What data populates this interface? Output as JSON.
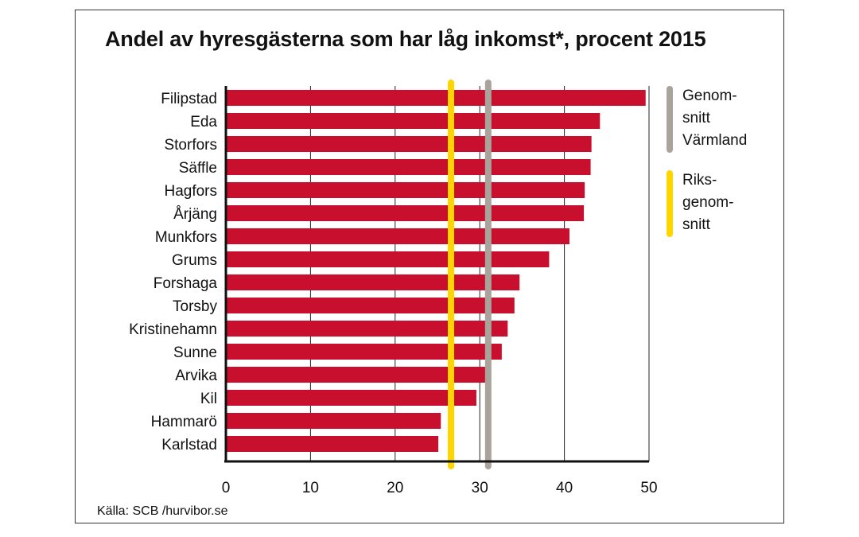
{
  "title": "Andel av hyresgästerna som har låg inkomst*, procent 2015",
  "source": "Källa: SCB /hurvibor.se",
  "legend": [
    {
      "lines": [
        "Genom-",
        "snitt",
        "Värmland"
      ],
      "color": "#aaa39c",
      "ref": "varmland"
    },
    {
      "lines": [
        "Riks-",
        "genom-",
        "snitt"
      ],
      "color": "#ffd500",
      "ref": "riks"
    }
  ],
  "chart_data": {
    "type": "bar",
    "orientation": "horizontal",
    "title": "Andel av hyresgästerna som har låg inkomst*, procent 2015",
    "categories": [
      "Filipstad",
      "Eda",
      "Storfors",
      "Säffle",
      "Hagfors",
      "Årjäng",
      "Munkfors",
      "Grums",
      "Forshaga",
      "Torsby",
      "Kristinehamn",
      "Sunne",
      "Arvika",
      "Kil",
      "Hammarö",
      "Karlstad"
    ],
    "values": [
      49.6,
      44.2,
      43.2,
      43.1,
      42.4,
      42.3,
      40.6,
      38.2,
      34.7,
      34.1,
      33.3,
      32.6,
      30.8,
      29.6,
      25.4,
      25.1
    ],
    "xlim": [
      0,
      50
    ],
    "xticks": [
      0,
      10,
      20,
      30,
      40,
      50
    ],
    "grid": "vertical",
    "bar_color": "#c8102e",
    "reference_lines": [
      {
        "name": "Genomsnitt Värmland",
        "value": 31.0,
        "color": "#aaa39c"
      },
      {
        "name": "Riksgenomsnitt",
        "value": 26.6,
        "color": "#ffd500"
      }
    ]
  }
}
